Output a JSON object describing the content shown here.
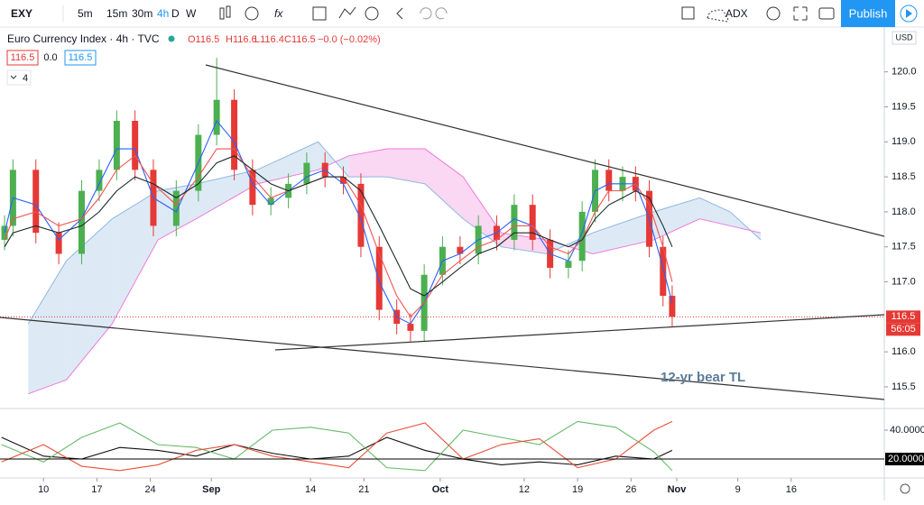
{
  "toolbar": {
    "symbol": "EXY",
    "intervals": [
      "5m",
      "15m",
      "30m",
      "4h",
      "D",
      "W"
    ],
    "indicator": "ADX",
    "publish": "Publish"
  },
  "legend": {
    "title": "Euro Currency Index · 4h · TVC",
    "ohlc": [
      "O116.5",
      "H116.6",
      "L116.4",
      "C116.5",
      "−0.0 (−0.02%)"
    ],
    "inputs": [
      "116.5",
      "0.0",
      "116.5"
    ],
    "collapsed_count": "4"
  },
  "chart_data": [
    {
      "type": "candlestick",
      "currency": "USD",
      "x": [
        4.9,
        6,
        9,
        12,
        15,
        17.3,
        19.6,
        22,
        24.4,
        27.4,
        30.3,
        32.7,
        35,
        37.4,
        39.8,
        42.1,
        44.5,
        46.9,
        49.3,
        51.6,
        54,
        56.3,
        58.1,
        59.9,
        62.3,
        64.6,
        67,
        69.4,
        71.7,
        74.1,
        76.4,
        78.8,
        80.6,
        82.3,
        84.1,
        85.9,
        87.6,
        89.4,
        91.2,
        92.4
      ],
      "open": [
        117.6,
        117.8,
        118.6,
        117.7,
        117.4,
        118.3,
        118.6,
        119.3,
        118.6,
        117.8,
        118.3,
        119.1,
        119.6,
        118.6,
        118.1,
        118.2,
        118.4,
        118.7,
        118.5,
        118.4,
        117.5,
        116.6,
        116.4,
        116.3,
        117.1,
        117.5,
        117.4,
        117.8,
        117.6,
        118.1,
        117.6,
        117.2,
        117.3,
        118.0,
        118.6,
        118.3,
        118.5,
        118.3,
        117.5,
        116.8
      ],
      "high": [
        117.95,
        118.75,
        118.75,
        117.85,
        118.45,
        118.75,
        119.45,
        119.45,
        118.75,
        118.45,
        119.25,
        120.2,
        119.75,
        118.75,
        118.35,
        118.55,
        118.85,
        118.85,
        118.65,
        118.55,
        117.65,
        116.75,
        116.55,
        117.25,
        117.65,
        117.65,
        117.95,
        117.95,
        118.25,
        118.25,
        117.75,
        117.45,
        118.15,
        118.75,
        118.75,
        118.65,
        118.65,
        118.45,
        117.65,
        116.95
      ],
      "low": [
        117.45,
        117.65,
        117.55,
        117.25,
        117.25,
        118.15,
        118.45,
        118.45,
        117.65,
        117.65,
        118.15,
        118.95,
        118.45,
        117.95,
        117.95,
        118.05,
        118.25,
        118.35,
        118.25,
        117.35,
        116.45,
        116.25,
        116.15,
        116.15,
        116.95,
        117.25,
        117.25,
        117.45,
        117.45,
        117.45,
        117.05,
        117.05,
        117.15,
        117.85,
        118.15,
        118.15,
        118.15,
        117.35,
        116.65,
        116.35
      ],
      "close": [
        117.8,
        118.6,
        117.7,
        117.4,
        118.3,
        118.6,
        119.3,
        118.6,
        117.8,
        118.3,
        119.1,
        119.6,
        118.6,
        118.1,
        118.2,
        118.4,
        118.7,
        118.5,
        118.4,
        117.5,
        116.6,
        116.4,
        116.3,
        117.1,
        117.5,
        117.4,
        117.8,
        117.6,
        118.1,
        117.6,
        117.2,
        117.3,
        118.0,
        118.6,
        118.3,
        118.5,
        118.3,
        117.5,
        116.8,
        116.5
      ],
      "up_color": "#4caf50",
      "down_color": "#e53935",
      "series": [
        {
          "color": "#2962ff",
          "values": [
            117.7,
            118.2,
            118.1,
            117.6,
            117.9,
            118.4,
            118.9,
            118.9,
            118.2,
            118.0,
            118.7,
            119.3,
            119.0,
            118.4,
            118.1,
            118.3,
            118.5,
            118.6,
            118.4,
            117.9,
            117.0,
            116.5,
            116.4,
            116.7,
            117.3,
            117.4,
            117.6,
            117.7,
            117.9,
            117.8,
            117.4,
            117.3,
            117.7,
            118.3,
            118.4,
            118.4,
            118.4,
            117.9,
            117.2,
            116.7
          ]
        },
        {
          "color": "#ef5350",
          "values": [
            117.6,
            117.9,
            118.0,
            117.8,
            117.9,
            118.2,
            118.6,
            118.8,
            118.4,
            118.1,
            118.5,
            118.9,
            118.9,
            118.5,
            118.2,
            118.3,
            118.4,
            118.5,
            118.5,
            118.1,
            117.4,
            116.8,
            116.5,
            116.7,
            117.1,
            117.3,
            117.5,
            117.6,
            117.8,
            117.8,
            117.5,
            117.4,
            117.6,
            118.0,
            118.3,
            118.3,
            118.4,
            118.1,
            117.5,
            117.0
          ]
        },
        {
          "color": "#1b2a2a",
          "values": [
            117.5,
            117.7,
            117.8,
            117.7,
            117.8,
            118.0,
            118.3,
            118.5,
            118.4,
            118.2,
            118.4,
            118.7,
            118.8,
            118.6,
            118.4,
            118.3,
            118.4,
            118.5,
            118.5,
            118.3,
            117.8,
            117.3,
            116.9,
            116.8,
            117.0,
            117.2,
            117.4,
            117.5,
            117.7,
            117.7,
            117.6,
            117.5,
            117.6,
            117.9,
            118.1,
            118.2,
            118.3,
            118.2,
            117.8,
            117.5
          ]
        }
      ],
      "cloud": {
        "x": [
          8,
          13,
          19,
          25,
          30,
          38,
          46,
          50,
          55,
          60,
          65,
          70,
          76,
          82,
          90,
          96,
          100,
          104
        ],
        "span_a": [
          116.4,
          117.3,
          117.9,
          118.3,
          118.4,
          118.6,
          119.0,
          118.5,
          118.5,
          118.4,
          117.9,
          117.5,
          117.4,
          117.7,
          118.0,
          118.2,
          118.0,
          117.6
        ],
        "span_b": [
          115.4,
          115.6,
          116.4,
          117.6,
          117.9,
          118.4,
          118.6,
          118.8,
          118.9,
          118.9,
          118.5,
          117.7,
          117.6,
          117.4,
          117.6,
          117.9,
          117.8,
          117.7
        ],
        "up_color": "#90b8e0",
        "down_color": "#f07ad8"
      },
      "last_price": 116.5,
      "countdown": "56:05",
      "annotation": "12-yr bear TL",
      "xlim": [
        4.3,
        120.2
      ],
      "xticks": [
        {
          "value": 10,
          "label": "10"
        },
        {
          "value": 17,
          "label": "17"
        },
        {
          "value": 24,
          "label": "24"
        },
        {
          "value": 32,
          "label": "Sep"
        },
        {
          "value": 45,
          "label": "14"
        },
        {
          "value": 52,
          "label": "21"
        },
        {
          "value": 62,
          "label": "Oct"
        },
        {
          "value": 73,
          "label": "12"
        },
        {
          "value": 80,
          "label": "19"
        },
        {
          "value": 87,
          "label": "26"
        },
        {
          "value": 93,
          "label": "Nov"
        },
        {
          "value": 101,
          "label": "9"
        },
        {
          "value": 108,
          "label": "16"
        }
      ],
      "ylim": [
        115.19,
        120.64
      ],
      "yticks": [
        {
          "value": 115.5,
          "label": "115.5"
        },
        {
          "value": 116,
          "label": "116.0"
        },
        {
          "value": 117,
          "label": "117.0"
        },
        {
          "value": 117.5,
          "label": "117.5"
        },
        {
          "value": 118,
          "label": "118.0"
        },
        {
          "value": 118.5,
          "label": "118.5"
        },
        {
          "value": 119,
          "label": "119.0"
        },
        {
          "value": 119.5,
          "label": "119.5"
        },
        {
          "value": 120,
          "label": "120.0"
        }
      ]
    },
    {
      "type": "line",
      "x": [
        4.5,
        10,
        15,
        20,
        25,
        30,
        35,
        40,
        45,
        50,
        55,
        60,
        65,
        70,
        75,
        80,
        85,
        90,
        92.4
      ],
      "series": [
        {
          "color": "#111111",
          "values": [
            35,
            22,
            20,
            28,
            26,
            22,
            30,
            24,
            20,
            22,
            35,
            26,
            20,
            16,
            18,
            16,
            22,
            20,
            26
          ]
        },
        {
          "color": "#66bb6a",
          "values": [
            30,
            18,
            35,
            45,
            30,
            28,
            20,
            40,
            42,
            38,
            14,
            12,
            40,
            35,
            30,
            46,
            42,
            25,
            12
          ]
        },
        {
          "color": "#e8503a",
          "values": [
            18,
            30,
            15,
            12,
            16,
            26,
            30,
            22,
            18,
            14,
            38,
            45,
            20,
            30,
            34,
            14,
            20,
            40,
            46
          ]
        }
      ],
      "xlim": [
        4.3,
        120.2
      ],
      "ylim": [
        6.9,
        55
      ],
      "yticks": [
        {
          "value": 40,
          "label": "40.0000"
        }
      ],
      "level": {
        "value": 20,
        "label": "20.0000"
      }
    }
  ]
}
